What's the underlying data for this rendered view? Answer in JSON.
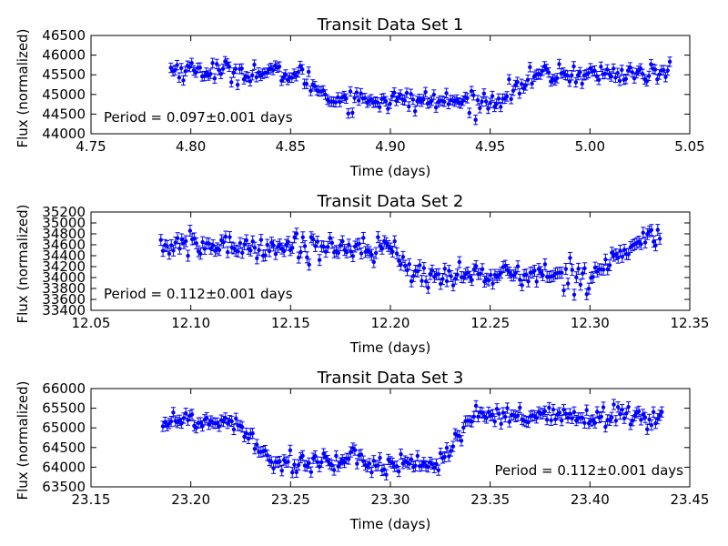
{
  "chart_data": [
    {
      "type": "scatter",
      "title": "Transit Data Set 1",
      "xlabel": "Time (days)",
      "ylabel": "Flux (normalized)",
      "xlim": [
        4.75,
        5.05
      ],
      "ylim": [
        44000,
        46500
      ],
      "xticks": [
        "4.75",
        "4.80",
        "4.85",
        "4.90",
        "4.95",
        "5.00",
        "5.05"
      ],
      "yticks": [
        "44000",
        "44500",
        "45000",
        "45500",
        "46000",
        "46500"
      ],
      "annotation": "Period = 0.097±0.001 days",
      "annotation_position": "bottom-left",
      "x_range": [
        4.79,
        5.04
      ],
      "error": 120,
      "profile": [
        [
          4.79,
          45650
        ],
        [
          4.855,
          45500
        ],
        [
          4.87,
          44900
        ],
        [
          4.95,
          44800
        ],
        [
          4.975,
          45500
        ],
        [
          5.04,
          45550
        ]
      ],
      "noise": 130,
      "marker": "o",
      "color": "#0000ff",
      "grid": false
    },
    {
      "type": "scatter",
      "title": "Transit Data Set 2",
      "xlabel": "Time (days)",
      "ylabel": "Flux (normalized)",
      "xlim": [
        12.05,
        12.35
      ],
      "ylim": [
        33400,
        35200
      ],
      "xticks": [
        "12.05",
        "12.10",
        "12.15",
        "12.20",
        "12.25",
        "12.30",
        "12.35"
      ],
      "yticks": [
        "33400",
        "33600",
        "33800",
        "34000",
        "34200",
        "34400",
        "34600",
        "34800",
        "35000",
        "35200"
      ],
      "annotation": "Period = 0.112±0.001 days",
      "annotation_position": "bottom-left",
      "x_range": [
        12.085,
        12.335
      ],
      "error": 100,
      "profile": [
        [
          12.085,
          34580
        ],
        [
          12.2,
          34560
        ],
        [
          12.21,
          34050
        ],
        [
          12.3,
          34050
        ],
        [
          12.32,
          34550
        ],
        [
          12.335,
          34800
        ]
      ],
      "noise": 110,
      "marker": "o",
      "color": "#0000ff",
      "grid": false
    },
    {
      "type": "scatter",
      "title": "Transit Data Set 3",
      "xlabel": "Time (days)",
      "ylabel": "Flux (normalized)",
      "xlim": [
        23.15,
        23.45
      ],
      "ylim": [
        63500,
        66000
      ],
      "xticks": [
        "23.15",
        "23.20",
        "23.25",
        "23.30",
        "23.35",
        "23.40",
        "23.45"
      ],
      "yticks": [
        "63500",
        "64000",
        "64500",
        "65000",
        "65500",
        "66000"
      ],
      "annotation": "Period = 0.112±0.001 days",
      "annotation_position": "bottom-right",
      "x_range": [
        23.186,
        23.436
      ],
      "error": 130,
      "profile": [
        [
          23.186,
          65200
        ],
        [
          23.225,
          65150
        ],
        [
          23.24,
          64150
        ],
        [
          23.325,
          64100
        ],
        [
          23.34,
          65250
        ],
        [
          23.436,
          65300
        ]
      ],
      "noise": 140,
      "marker": "o",
      "color": "#0000ff",
      "grid": false
    }
  ]
}
